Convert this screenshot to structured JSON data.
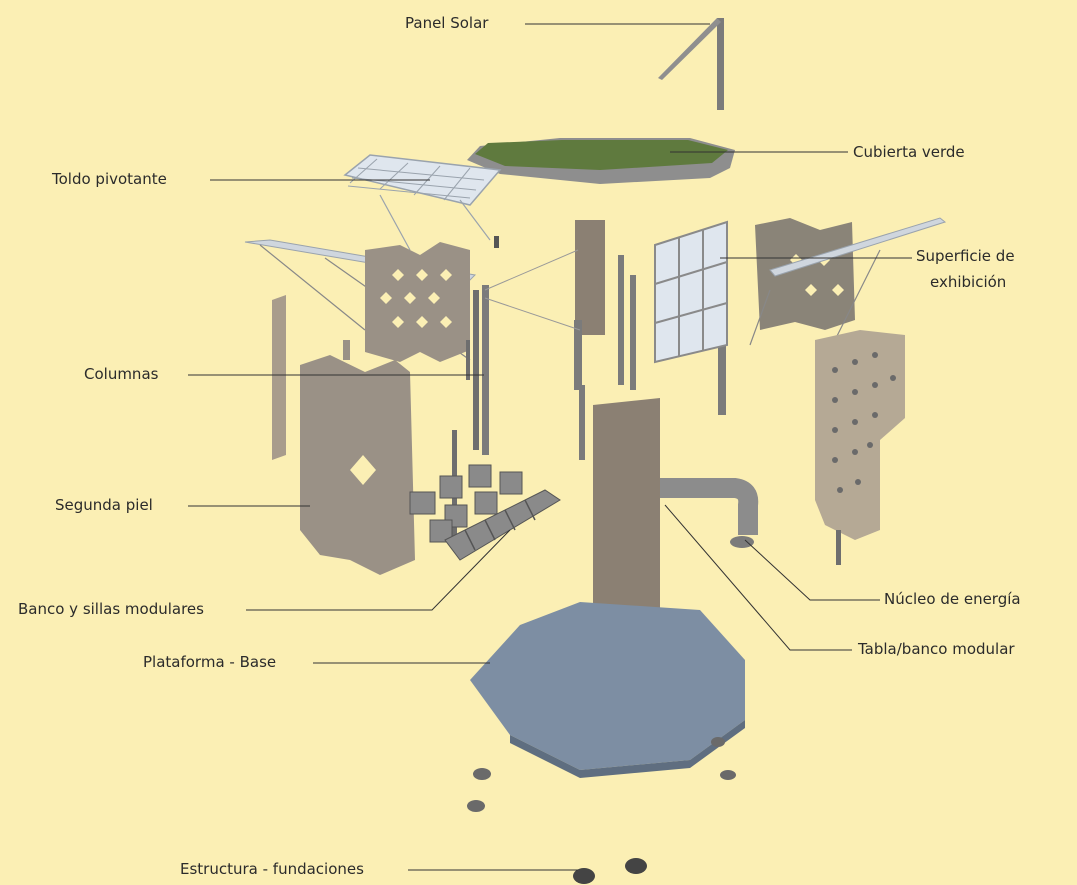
{
  "labels": {
    "panel_solar": "Panel Solar",
    "cubierta_verde": "Cubierta verde",
    "toldo_pivotante": "Toldo pivotante",
    "superficie_line1": "Superficie de",
    "superficie_line2": "exhibición",
    "columnas": "Columnas",
    "segunda_piel": "Segunda piel",
    "banco_sillas": "Banco y sillas modulares",
    "nucleo_energia": "Núcleo de energía",
    "tabla_banco": "Tabla/banco modular",
    "plataforma_base": "Plataforma - Base",
    "estructura_fundaciones": "Estructura - fundaciones"
  },
  "colors": {
    "background": "#fbefb4",
    "leader_line": "#333333",
    "panel_fill": "#9a9186",
    "panel_hole": "#fbefb4",
    "green_roof": "#5f7a3e",
    "roof_rim": "#8e8e8e",
    "base_fill": "#7d8ea3",
    "glass": "#dfe6ee",
    "metal": "#7b7b7b"
  }
}
